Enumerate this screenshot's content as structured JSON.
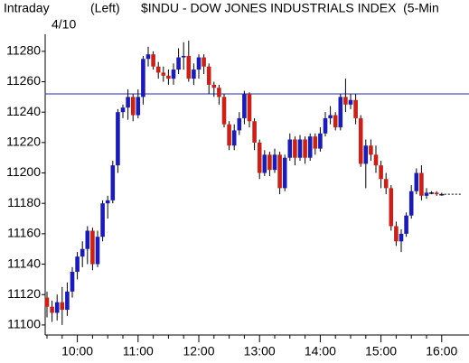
{
  "chart_data": {
    "type": "candlestick",
    "title": "$INDU - DOW JONES INDUSTRIALS INDEX  (5-Min",
    "period_label": "Intraday",
    "axis_side_label": "(Left)",
    "date_label": "4/10",
    "categories": [
      null,
      null,
      null,
      null,
      null,
      null,
      "10:00",
      null,
      null,
      null,
      null,
      null,
      null,
      null,
      null,
      null,
      null,
      null,
      "11:00",
      null,
      null,
      null,
      null,
      null,
      null,
      null,
      null,
      null,
      null,
      null,
      "12:00",
      null,
      null,
      null,
      null,
      null,
      null,
      null,
      null,
      null,
      null,
      null,
      "13:00",
      null,
      null,
      null,
      null,
      null,
      null,
      null,
      null,
      null,
      null,
      null,
      "14:00",
      null,
      null,
      null,
      null,
      null,
      null,
      null,
      null,
      null,
      null,
      null,
      "15:00",
      null,
      null,
      null,
      null,
      null,
      null,
      null,
      null,
      null,
      null,
      null,
      "16:00"
    ],
    "open": [
      11118,
      11112,
      11108,
      11115,
      11110,
      11122,
      11135,
      11145,
      11150,
      11162,
      11140,
      11158,
      11180,
      11182,
      11205,
      11240,
      11243,
      11250,
      11238,
      11250,
      11275,
      11278,
      11270,
      11266,
      11264,
      11262,
      11268,
      11276,
      11277,
      11262,
      11268,
      11276,
      11270,
      11258,
      11256,
      11250,
      11232,
      11218,
      11228,
      11236,
      11252,
      11234,
      11220,
      11200,
      11212,
      11202,
      11212,
      11190,
      11210,
      11222,
      11210,
      11222,
      11210,
      11224,
      11216,
      11226,
      11236,
      11238,
      11230,
      11250,
      11245,
      11248,
      11236,
      11206,
      11218,
      11212,
      11205,
      11196,
      11190,
      11165,
      11155,
      11160,
      11172,
      11188,
      11200,
      11185,
      11187,
      11187,
      11186
    ],
    "high": [
      11122,
      11116,
      11120,
      11125,
      11128,
      11138,
      11148,
      11155,
      11165,
      11164,
      11162,
      11182,
      11185,
      11208,
      11242,
      11245,
      11255,
      11252,
      11255,
      11277,
      11283,
      11280,
      11273,
      11270,
      11268,
      11272,
      11282,
      11286,
      11287,
      11272,
      11278,
      11278,
      11272,
      11260,
      11258,
      11252,
      11234,
      11232,
      11240,
      11254,
      11253,
      11236,
      11222,
      11215,
      11214,
      11216,
      11214,
      11212,
      11226,
      11224,
      11225,
      11224,
      11226,
      11226,
      11230,
      11240,
      11244,
      11240,
      11252,
      11262,
      11252,
      11252,
      11238,
      11222,
      11222,
      11218,
      11208,
      11200,
      11192,
      11168,
      11163,
      11174,
      11192,
      11203,
      11205,
      11190,
      11188,
      11188,
      11187
    ],
    "low": [
      11105,
      11102,
      11103,
      11100,
      11106,
      11118,
      11130,
      11138,
      11140,
      11136,
      11138,
      11155,
      11170,
      11180,
      11200,
      11236,
      11235,
      11234,
      11236,
      11245,
      11270,
      11268,
      11262,
      11260,
      11258,
      11258,
      11265,
      11268,
      11260,
      11258,
      11262,
      11265,
      11252,
      11250,
      11245,
      11230,
      11215,
      11215,
      11225,
      11232,
      11230,
      11215,
      11196,
      11198,
      11198,
      11200,
      11186,
      11188,
      11208,
      11205,
      11208,
      11206,
      11208,
      11212,
      11214,
      11224,
      11232,
      11228,
      11228,
      11240,
      11242,
      11232,
      11204,
      11190,
      11208,
      11200,
      11190,
      11186,
      11162,
      11152,
      11148,
      11158,
      11170,
      11186,
      11182,
      11183,
      11186,
      11185,
      11185
    ],
    "close": [
      11112,
      11108,
      11115,
      11110,
      11122,
      11135,
      11145,
      11150,
      11162,
      11140,
      11158,
      11180,
      11182,
      11205,
      11240,
      11243,
      11250,
      11238,
      11250,
      11275,
      11278,
      11270,
      11266,
      11264,
      11262,
      11268,
      11276,
      11277,
      11262,
      11268,
      11276,
      11270,
      11258,
      11256,
      11250,
      11232,
      11218,
      11228,
      11236,
      11252,
      11234,
      11220,
      11200,
      11212,
      11202,
      11212,
      11190,
      11210,
      11222,
      11210,
      11222,
      11210,
      11224,
      11216,
      11226,
      11236,
      11238,
      11230,
      11250,
      11245,
      11248,
      11236,
      11206,
      11218,
      11212,
      11205,
      11196,
      11190,
      11165,
      11155,
      11160,
      11172,
      11188,
      11200,
      11185,
      11187,
      11187,
      11186,
      11186
    ],
    "up_color": "#1c1cb0",
    "down_color": "#c4231c",
    "reference_line": {
      "value": 11252,
      "color": "#2a2ab8"
    },
    "ylim": [
      11094,
      11290
    ],
    "yticks": [
      11100,
      11120,
      11140,
      11160,
      11180,
      11200,
      11220,
      11240,
      11260,
      11280
    ]
  }
}
